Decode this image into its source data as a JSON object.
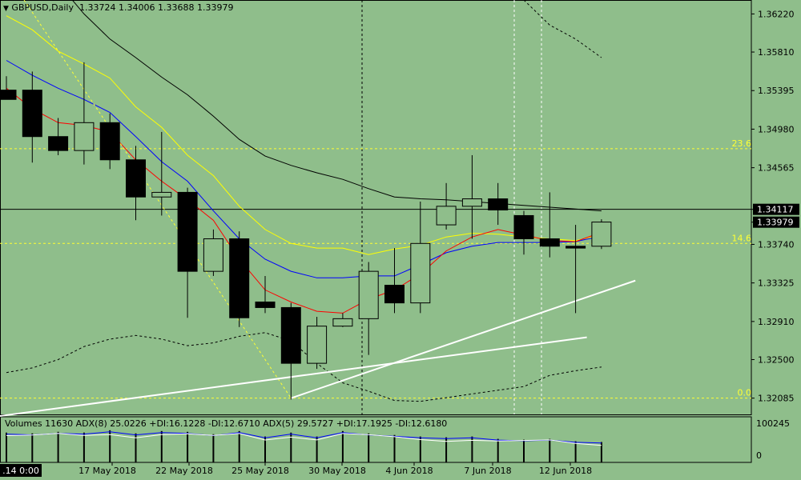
{
  "header": {
    "symbol": "GBPUSD",
    "timeframe": "Daily",
    "open": "1.33724",
    "high": "1.34006",
    "low": "1.33688",
    "close": "1.33979"
  },
  "indicator_line": "Volumes 11630  ADX(8) 25.0226 +DI:16.1228 -DI:12.6710  ADX(5) 29.5727 +DI:17.1925 -DI:12.6180",
  "chart_data": {
    "type": "candlestick",
    "symbol": "GBPUSD",
    "timeframe": "Daily",
    "price_axis_ticks": [
      "1.36220",
      "1.35810",
      "1.35395",
      "1.34980",
      "1.34565",
      "1.34117",
      "1.33979",
      "1.33740",
      "1.33325",
      "1.32910",
      "1.32500",
      "1.32085"
    ],
    "current_price_label": "1.33979",
    "hline_price_label": "1.34117",
    "hline_price": 1.34117,
    "ylim": [
      1.3191,
      1.3637
    ],
    "fib_levels": [
      {
        "label": "23.6",
        "price": 1.3477
      },
      {
        "label": "14.6",
        "price": 1.3375
      },
      {
        "label": "0.0",
        "price": 1.32085
      }
    ],
    "x_tick_labels": [
      ".14 0:00",
      "17 May 2018",
      "22 May 2018",
      "25 May 2018",
      "30 May 2018",
      "4 Jun 2018",
      "7 Jun 2018",
      "12 Jun 2018"
    ],
    "candles": [
      {
        "o": 1.354,
        "h": 1.3555,
        "l": 1.353,
        "c": 1.353
      },
      {
        "o": 1.354,
        "h": 1.356,
        "l": 1.3462,
        "c": 1.349
      },
      {
        "o": 1.349,
        "h": 1.351,
        "l": 1.347,
        "c": 1.3475
      },
      {
        "o": 1.3475,
        "h": 1.357,
        "l": 1.346,
        "c": 1.3505
      },
      {
        "o": 1.3505,
        "h": 1.3515,
        "l": 1.3455,
        "c": 1.3465
      },
      {
        "o": 1.3465,
        "h": 1.348,
        "l": 1.34,
        "c": 1.3425
      },
      {
        "o": 1.3425,
        "h": 1.3495,
        "l": 1.3405,
        "c": 1.343
      },
      {
        "o": 1.343,
        "h": 1.3435,
        "l": 1.3295,
        "c": 1.3345
      },
      {
        "o": 1.3345,
        "h": 1.339,
        "l": 1.334,
        "c": 1.338
      },
      {
        "o": 1.338,
        "h": 1.3388,
        "l": 1.3285,
        "c": 1.3295
      },
      {
        "o": 1.3312,
        "h": 1.334,
        "l": 1.33,
        "c": 1.3306
      },
      {
        "o": 1.3306,
        "h": 1.3311,
        "l": 1.3207,
        "c": 1.3246
      },
      {
        "o": 1.3246,
        "h": 1.3296,
        "l": 1.324,
        "c": 1.3286
      },
      {
        "o": 1.3286,
        "h": 1.33,
        "l": 1.3285,
        "c": 1.3294
      },
      {
        "o": 1.3294,
        "h": 1.3355,
        "l": 1.3255,
        "c": 1.3345
      },
      {
        "o": 1.333,
        "h": 1.337,
        "l": 1.33,
        "c": 1.3311
      },
      {
        "o": 1.3311,
        "h": 1.342,
        "l": 1.33,
        "c": 1.3375
      },
      {
        "o": 1.3395,
        "h": 1.344,
        "l": 1.339,
        "c": 1.3415
      },
      {
        "o": 1.3415,
        "h": 1.347,
        "l": 1.338,
        "c": 1.3423
      },
      {
        "o": 1.3423,
        "h": 1.344,
        "l": 1.3395,
        "c": 1.3411
      },
      {
        "o": 1.3405,
        "h": 1.341,
        "l": 1.3363,
        "c": 1.338
      },
      {
        "o": 1.338,
        "h": 1.343,
        "l": 1.336,
        "c": 1.3372
      },
      {
        "o": 1.3372,
        "h": 1.3395,
        "l": 1.33,
        "c": 1.337
      },
      {
        "o": 1.3372,
        "h": 1.3401,
        "l": 1.3369,
        "c": 1.3398
      }
    ],
    "ma_blue": [
      1.3572,
      1.3556,
      1.3542,
      1.353,
      1.3516,
      1.349,
      1.3463,
      1.3442,
      1.341,
      1.338,
      1.3358,
      1.3345,
      1.3338,
      1.3338,
      1.334,
      1.334,
      1.3352,
      1.3365,
      1.3372,
      1.3376,
      1.3376,
      1.3376,
      1.3377,
      1.3383
    ],
    "ma_red": [
      1.3542,
      1.352,
      1.3505,
      1.3502,
      1.3495,
      1.3465,
      1.3442,
      1.3422,
      1.34,
      1.3358,
      1.3325,
      1.3312,
      1.3302,
      1.33,
      1.3315,
      1.3325,
      1.3342,
      1.3367,
      1.3382,
      1.339,
      1.3384,
      1.3378,
      1.3377,
      1.3387
    ],
    "ma_yellow": [
      1.362,
      1.3605,
      1.3582,
      1.3568,
      1.3553,
      1.3522,
      1.35,
      1.347,
      1.3448,
      1.3415,
      1.339,
      1.3375,
      1.337,
      1.337,
      1.3363,
      1.3369,
      1.3373,
      1.3382,
      1.3386,
      1.3385,
      1.3382,
      1.338,
      1.3378,
      1.3384
    ],
    "ma_black": [
      1.3705,
      1.368,
      1.3655,
      1.3622,
      1.3595,
      1.3575,
      1.3554,
      1.3535,
      1.3512,
      1.3487,
      1.3469,
      1.3459,
      1.3451,
      1.3444,
      1.3434,
      1.3425,
      1.3423,
      1.3422,
      1.342,
      1.3418,
      1.3416,
      1.3414,
      1.3412,
      1.341
    ],
    "band_lower": [
      1.3236,
      1.3241,
      1.325,
      1.3264,
      1.3272,
      1.3276,
      1.3272,
      1.3265,
      1.3268,
      1.3275,
      1.3279,
      1.327,
      1.3246,
      1.3225,
      1.3216,
      1.3206,
      1.3205,
      1.3209,
      1.3213,
      1.3217,
      1.3221,
      1.3233,
      1.3238,
      1.3242
    ],
    "volume": [
      0.76,
      0.74,
      0.78,
      0.76,
      0.82,
      0.74,
      0.8,
      0.78,
      0.72,
      0.8,
      0.66,
      0.76,
      0.66,
      0.8,
      0.74,
      0.7,
      0.66,
      0.64,
      0.66,
      0.6,
      0.58,
      0.6,
      0.54,
      0.52
    ],
    "volume_axis_labels": [
      "100245",
      "0"
    ]
  }
}
